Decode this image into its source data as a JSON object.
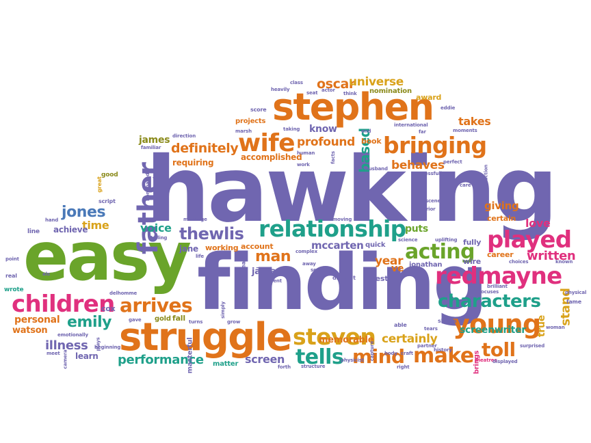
{
  "palette": {
    "purple": "#7066b0",
    "orange": "#e0731a",
    "green": "#6aa42a",
    "teal": "#1fa08a",
    "pink": "#e0307e",
    "gold": "#d9a21a",
    "olive": "#8a8a1a",
    "blue": "#4a79b8"
  },
  "words": {
    "hawking": "hawking",
    "finding": "finding",
    "easy": "easy",
    "stephen": "stephen",
    "struggle": "struggle",
    "relationship": "relationship",
    "redmayne": "redmayne",
    "children": "children",
    "steven": "steven",
    "young": "young",
    "played": "played",
    "bringing": "bringing",
    "characters": "characters",
    "father": "father",
    "wife": "wife",
    "arrives": "arrives",
    "thewlis": "thewlis",
    "acting": "acting",
    "make": "make",
    "tells": "tells",
    "toll": "toll",
    "emily": "emily",
    "jones": "jones",
    "definitely": "definitely",
    "profound": "profound",
    "oscar": "oscar",
    "universe": "universe",
    "mind": "mind",
    "man": "man",
    "written": "written",
    "based": "based",
    "performance": "performance",
    "behaves": "behaves",
    "illness": "illness",
    "certainly": "certainly",
    "screenwriter": "screenwriter",
    "time": "time",
    "voice": "voice",
    "year": "year",
    "screen": "screen",
    "love": "love",
    "giving": "giving",
    "puts": "puts",
    "stand": "stand",
    "mccarten": "mccarten",
    "takes": "takes",
    "know": "know",
    "james": "james",
    "personal": "personal",
    "jane": "jane",
    "ve": "ve",
    "memorable": "memorable",
    "watson": "watson",
    "accomplished": "accomplished",
    "requiring": "requiring",
    "achieve": "achieve",
    "learn": "learn",
    "true": "true",
    "certain": "certain",
    "career": "career",
    "wire": "wire",
    "fully": "fully",
    "best": "best",
    "account": "account",
    "working": "working",
    "quick": "quick",
    "jonathan": "jonathan",
    "nomination": "nomination",
    "award": "award",
    "projects": "projects",
    "matter": "matter",
    "fall": "fall",
    "gold": "gold",
    "cox": "cox",
    "book": "book",
    "brings": "brings",
    "masterful": "masterful",
    "jahann": "jã³hann",
    "score": "score",
    "line": "line",
    "wrote": "wrote",
    "real": "real",
    "point": "point",
    "good": "good",
    "great": "great",
    "script": "script",
    "hand": "hand",
    "als": "als",
    "meet": "meet",
    "camera": "camera",
    "plays": "plays",
    "emotionally": "emotionally",
    "beginning": "beginning",
    "delhomme": "delhomme",
    "gave": "gave",
    "turns": "turns",
    "simply": "simply",
    "grow": "grow",
    "disease": "disease",
    "went": "went",
    "away": "away",
    "sensitive": "sensitive",
    "difficult": "difficult",
    "able": "able",
    "capture": "capture",
    "physicist": "physicist",
    "body": "body",
    "craft": "craft",
    "partner": "partner",
    "history": "history",
    "tears": "tears",
    "shows": "shows",
    "right": "right",
    "forth": "forth",
    "structure": "structure",
    "theatres": "theatres",
    "displayed": "displayed",
    "surprised": "surprised",
    "woman": "woman",
    "fame": "fame",
    "physical": "physical",
    "known": "known",
    "choices": "choices",
    "focuses": "focuses",
    "brilliant": "brilliant",
    "science": "science",
    "uplifting": "uplifting",
    "moving": "moving",
    "met": "met",
    "marriage": "marriage",
    "telling": "telling",
    "life": "life",
    "nominated": "nominated",
    "marsh": "marsh",
    "familiar": "familiar",
    "direction": "direction",
    "taking": "taking",
    "human": "human",
    "work": "work",
    "facts": "facts",
    "end": "end",
    "husband": "husband",
    "successfully": "successfully",
    "perfect": "perfect",
    "international": "international",
    "far": "far",
    "moments": "moments",
    "care": "care",
    "production": "production",
    "actual": "actual",
    "scenes": "scenes",
    "prior": "prior",
    "eddie": "eddie",
    "class": "class",
    "heavily": "heavily",
    "seat": "seat",
    "actor": "actor",
    "think": "think",
    "complex": "complex"
  }
}
